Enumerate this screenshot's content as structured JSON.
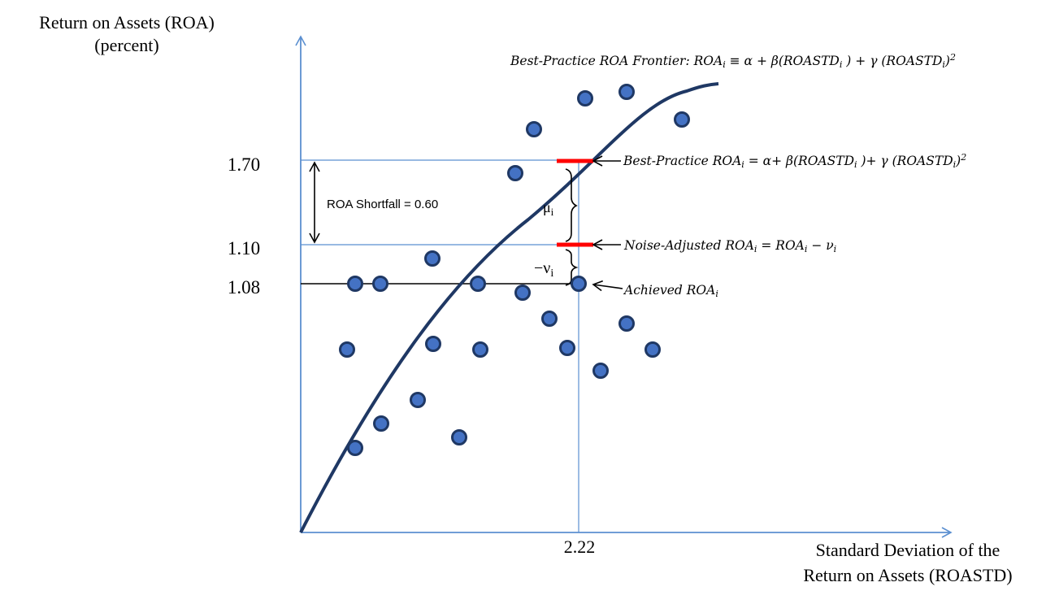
{
  "y_axis_title": [
    "Return on Assets (ROA)",
    "(percent)"
  ],
  "x_axis_title": [
    "Standard Deviation of the",
    "Return on Assets (ROASTD)"
  ],
  "y_ticks": {
    "high": "1.70",
    "mid": "1.10",
    "low": "1.08"
  },
  "x_tick": "2.22",
  "shortfall_label": "ROA Shortfall = 0.60",
  "mu_label": "μ",
  "mu_sub": "i",
  "nu_label": "−ν",
  "nu_sub": "i",
  "frontier_label": {
    "a": "Best-Practice ROA Frontier: ROA",
    "sub1": "i",
    "b": " ≡ α + β(ROASTD",
    "sub2": "i",
    "c": " ) + γ (ROASTD",
    "sub3": "i",
    "d": ")",
    "sup": "2"
  },
  "best_practice_label": {
    "a": "Best-Practice ROA",
    "sub1": "i",
    "b": " = α+ β(ROASTD",
    "sub2": "i",
    "c": " )+ γ (ROASTD",
    "sub3": "i",
    "d": ")",
    "sup": "2"
  },
  "noise_label": {
    "a": "Noise-Adjusted ROA",
    "sub1": "i",
    "b": " = ROA",
    "sub2": "i",
    "c": " − ν",
    "sub3": "i"
  },
  "achieved_label": {
    "a": "Achieved ROA",
    "sub1": "i"
  },
  "colors": {
    "axis": "#5b8fd0",
    "frontier": "#1f3864",
    "dot_fill": "#4472c4",
    "dot_stroke": "#1f3864",
    "marker": "#ff0000"
  }
}
